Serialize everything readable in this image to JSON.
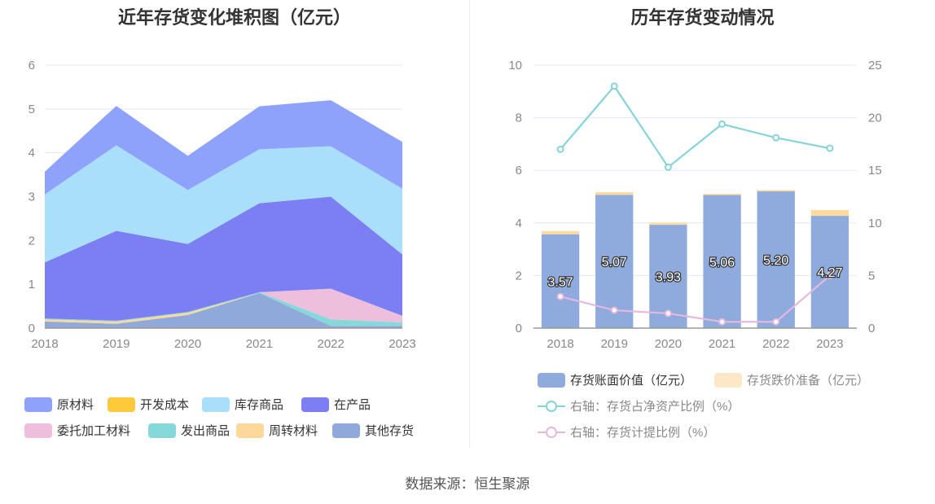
{
  "source_text": "数据来源：恒生聚源",
  "chart_data": [
    {
      "type": "area",
      "stacked": true,
      "title": "近年存货变化堆积图（亿元）",
      "categories": [
        "2018",
        "2019",
        "2020",
        "2021",
        "2022",
        "2023"
      ],
      "ylim": [
        0,
        6
      ],
      "yticks": [
        "0",
        "1",
        "2",
        "3",
        "4",
        "5",
        "6"
      ],
      "grid": true,
      "legend_position": "bottom",
      "series": [
        {
          "name": "其他存货",
          "color": "#8FA9DB",
          "values": [
            0.15,
            0.1,
            0.3,
            0.8,
            0.05,
            0.05
          ]
        },
        {
          "name": "周转材料",
          "color": "#FDD89B",
          "values": [
            0.05,
            0.05,
            0.05,
            0.0,
            0.0,
            0.0
          ]
        },
        {
          "name": "发出商品",
          "color": "#86D9DA",
          "values": [
            0.02,
            0.02,
            0.02,
            0.02,
            0.15,
            0.08
          ]
        },
        {
          "name": "委托加工材料",
          "color": "#EEBEDD",
          "values": [
            0.0,
            0.0,
            0.0,
            0.0,
            0.7,
            0.15
          ]
        },
        {
          "name": "在产品",
          "color": "#7B7FF2",
          "values": [
            1.28,
            2.05,
            1.55,
            2.03,
            2.1,
            1.4
          ]
        },
        {
          "name": "开发成本",
          "color": "#FFC93C",
          "values": [
            0.0,
            0.0,
            0.0,
            0.0,
            0.0,
            0.0
          ]
        },
        {
          "name": "库存商品",
          "color": "#A9DFFB",
          "values": [
            1.55,
            1.95,
            1.23,
            1.23,
            1.15,
            1.5
          ]
        },
        {
          "name": "原材料",
          "color": "#8FA2FB",
          "values": [
            0.52,
            0.9,
            0.78,
            0.98,
            1.05,
            1.07
          ]
        }
      ],
      "legend": [
        {
          "name": "原材料",
          "color": "#8FA2FB"
        },
        {
          "name": "开发成本",
          "color": "#FFC93C"
        },
        {
          "name": "库存商品",
          "color": "#A9DFFB"
        },
        {
          "name": "在产品",
          "color": "#7B7FF2"
        },
        {
          "name": "委托加工材料",
          "color": "#EEBEDD"
        },
        {
          "name": "发出商品",
          "color": "#86D9DA"
        },
        {
          "name": "周转材料",
          "color": "#FDD89B"
        },
        {
          "name": "其他存货",
          "color": "#8FA9DB"
        }
      ]
    },
    {
      "type": "bar",
      "stacked": true,
      "title": "历年存货变动情况",
      "categories": [
        "2018",
        "2019",
        "2020",
        "2021",
        "2022",
        "2023"
      ],
      "ylim": [
        0,
        10
      ],
      "yticks": [
        "0",
        "2",
        "4",
        "6",
        "8",
        "10"
      ],
      "y2lim": [
        0,
        25
      ],
      "y2ticks": [
        "0",
        "5",
        "10",
        "15",
        "20",
        "25"
      ],
      "grid": true,
      "legend_position": "bottom",
      "series": [
        {
          "name": "存货账面价值（亿元）",
          "axis": "left",
          "type": "bar",
          "color": "#8FAADC",
          "values": [
            3.57,
            5.07,
            3.93,
            5.06,
            5.2,
            4.27
          ],
          "labels": [
            "3.57",
            "5.07",
            "3.93",
            "5.06",
            "5.20",
            "4.27"
          ]
        },
        {
          "name": "存货跌价准备（亿元）",
          "axis": "left",
          "type": "bar",
          "color": "#FDDA9E",
          "legend_color": "#FCE7C6",
          "values": [
            0.12,
            0.1,
            0.08,
            0.05,
            0.05,
            0.22
          ]
        },
        {
          "name": "右轴：存货占净资产比例（%）",
          "axis": "right",
          "type": "line",
          "color": "#86D3D9",
          "values": [
            17.0,
            23.0,
            15.3,
            19.4,
            18.1,
            17.1
          ]
        },
        {
          "name": "右轴：存货计提比例（%）",
          "axis": "right",
          "type": "line",
          "color": "#E6B8DC",
          "values": [
            3.0,
            1.7,
            1.4,
            0.6,
            0.6,
            5.0
          ]
        }
      ]
    }
  ]
}
